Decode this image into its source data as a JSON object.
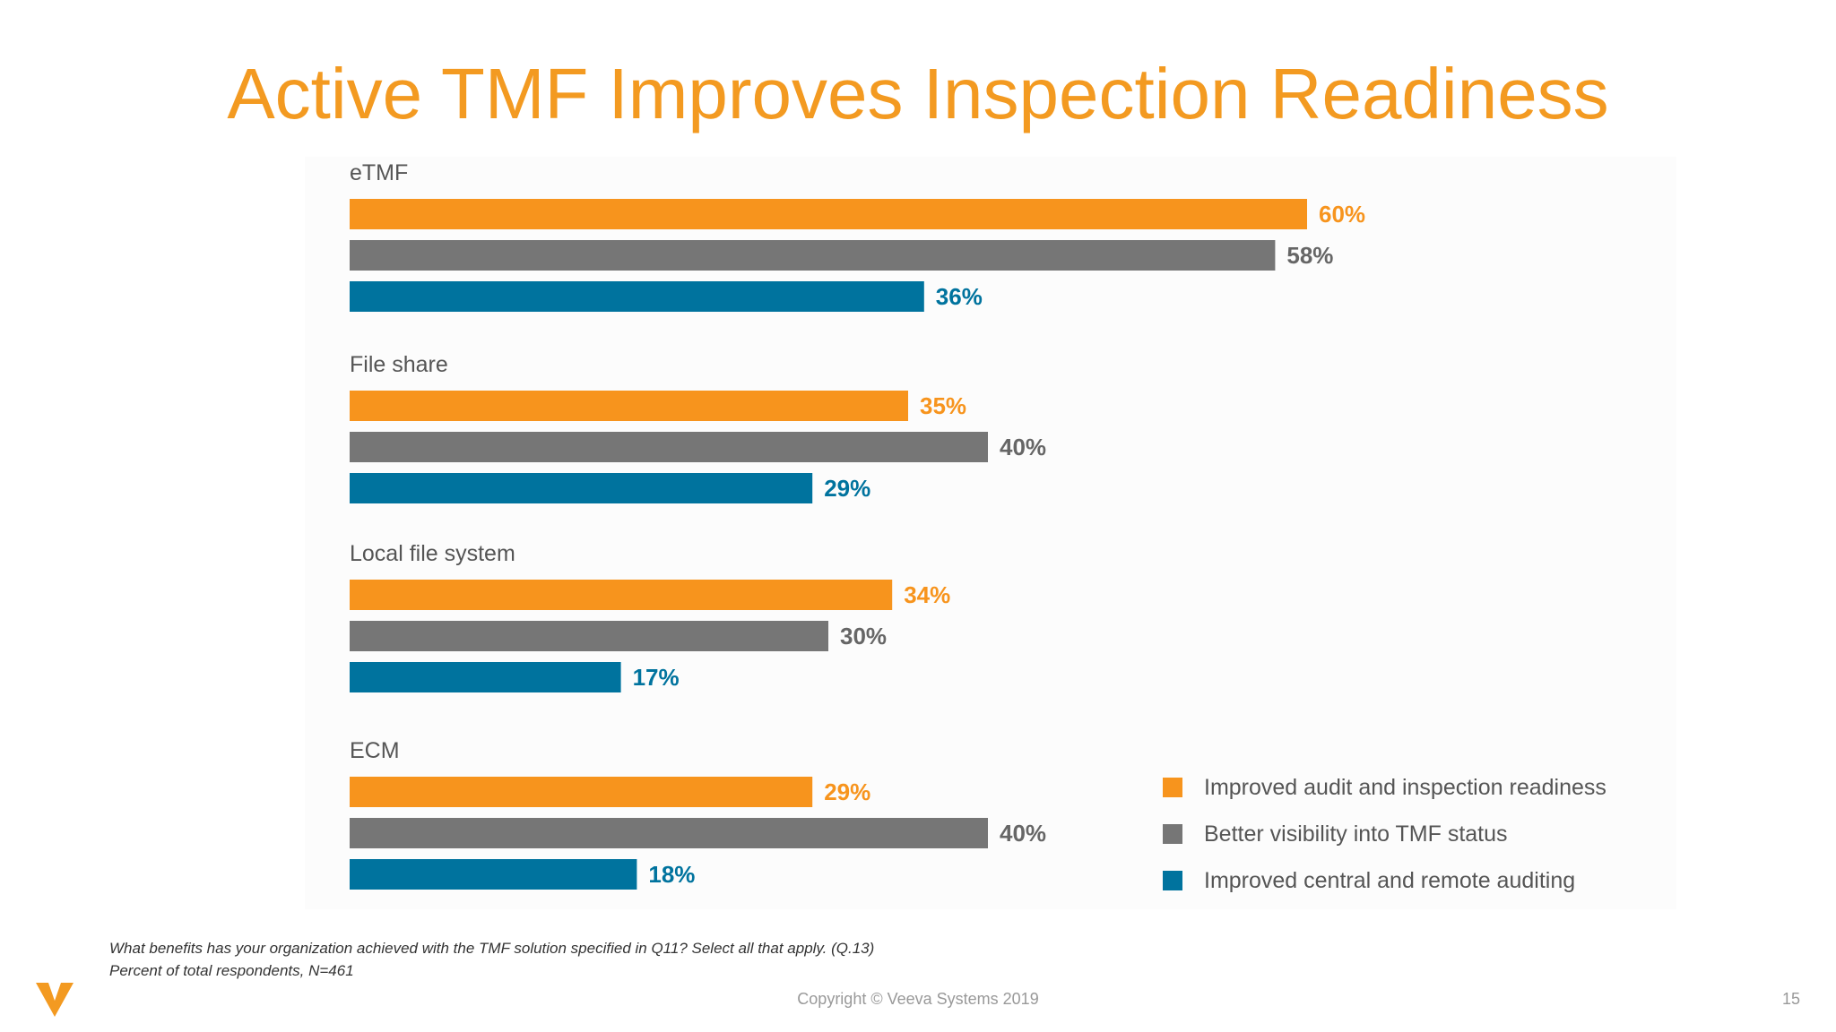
{
  "slide": {
    "title": "Active TMF Improves Inspection Readiness",
    "footnote_question": "What benefits has your organization achieved with the TMF solution specified in Q11? Select all that apply. (Q.13)",
    "footnote_base": "Percent of total respondents, N=461",
    "copyright": "Copyright © Veeva Systems 2019",
    "page_number": "15",
    "logo_icon": "veeva-v-logo-icon"
  },
  "chart_data": {
    "type": "bar",
    "orientation": "horizontal",
    "categories": [
      "eTMF",
      "File share",
      "Local file system",
      "ECM"
    ],
    "series": [
      {
        "name": "Improved audit and inspection readiness",
        "color": "#f7941d",
        "label_color": "#f7941d",
        "values": [
          60,
          35,
          34,
          29
        ]
      },
      {
        "name": "Better visibility into TMF status",
        "color": "#767676",
        "label_color": "#666666",
        "values": [
          58,
          40,
          30,
          40
        ]
      },
      {
        "name": "Improved central and remote auditing",
        "color": "#00739e",
        "label_color": "#00739e",
        "values": [
          36,
          29,
          17,
          18
        ]
      }
    ],
    "value_suffix": "%",
    "xlim": [
      0,
      100
    ],
    "grid": false,
    "legend_position": "bottom-right"
  }
}
